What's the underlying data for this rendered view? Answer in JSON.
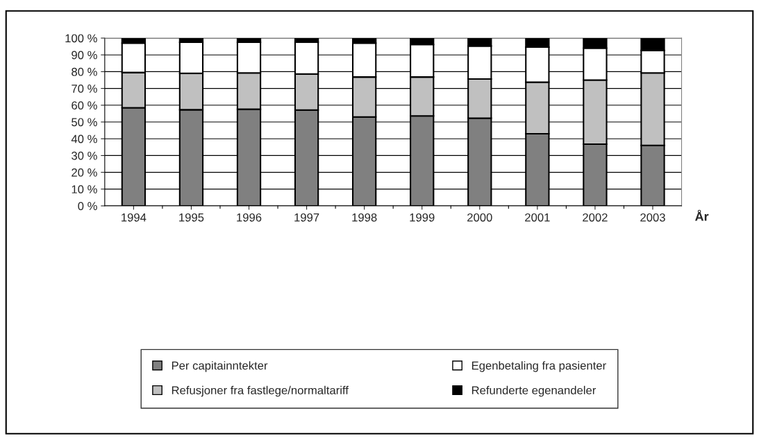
{
  "chart_data": {
    "type": "bar",
    "stacked": true,
    "xlabel": "År",
    "categories": [
      "1994",
      "1995",
      "1996",
      "1997",
      "1998",
      "1999",
      "2000",
      "2001",
      "2002",
      "2003"
    ],
    "series": [
      {
        "name": "Per capitainntekter",
        "color": "#808080",
        "values": [
          58.5,
          57.3,
          57.6,
          57.1,
          53,
          53.6,
          52.3,
          43,
          36.8,
          36
        ]
      },
      {
        "name": "Refusjoner fra fastlege/normaltariff",
        "color": "#c0c0c0",
        "values": [
          21,
          21.7,
          21.6,
          21.5,
          23.8,
          23.2,
          23.3,
          30.7,
          38.2,
          43.2
        ]
      },
      {
        "name": "Egenbetaling fra pasienter",
        "color": "#ffffff",
        "values": [
          17.5,
          18.5,
          18.3,
          19,
          20.2,
          19.4,
          19.7,
          20.9,
          19,
          13.4
        ]
      },
      {
        "name": "Refunderte egenandeler",
        "color": "#000000",
        "values": [
          3,
          2.5,
          2.5,
          2.4,
          3,
          3.8,
          4.7,
          5.4,
          6,
          7.4
        ]
      }
    ],
    "ylim": [
      0,
      100
    ],
    "yticks": [
      {
        "value": 0,
        "label": "0 %"
      },
      {
        "value": 10,
        "label": "10 %"
      },
      {
        "value": 20,
        "label": "20 %"
      },
      {
        "value": 30,
        "label": "30 %"
      },
      {
        "value": 40,
        "label": "40 %"
      },
      {
        "value": 50,
        "label": "50 %"
      },
      {
        "value": 60,
        "label": "60 %"
      },
      {
        "value": 70,
        "label": "70 %"
      },
      {
        "value": 80,
        "label": "80 %"
      },
      {
        "value": 90,
        "label": "90 %"
      },
      {
        "value": 100,
        "label": "100 %"
      }
    ],
    "grid": "y",
    "legend": "bottom"
  }
}
